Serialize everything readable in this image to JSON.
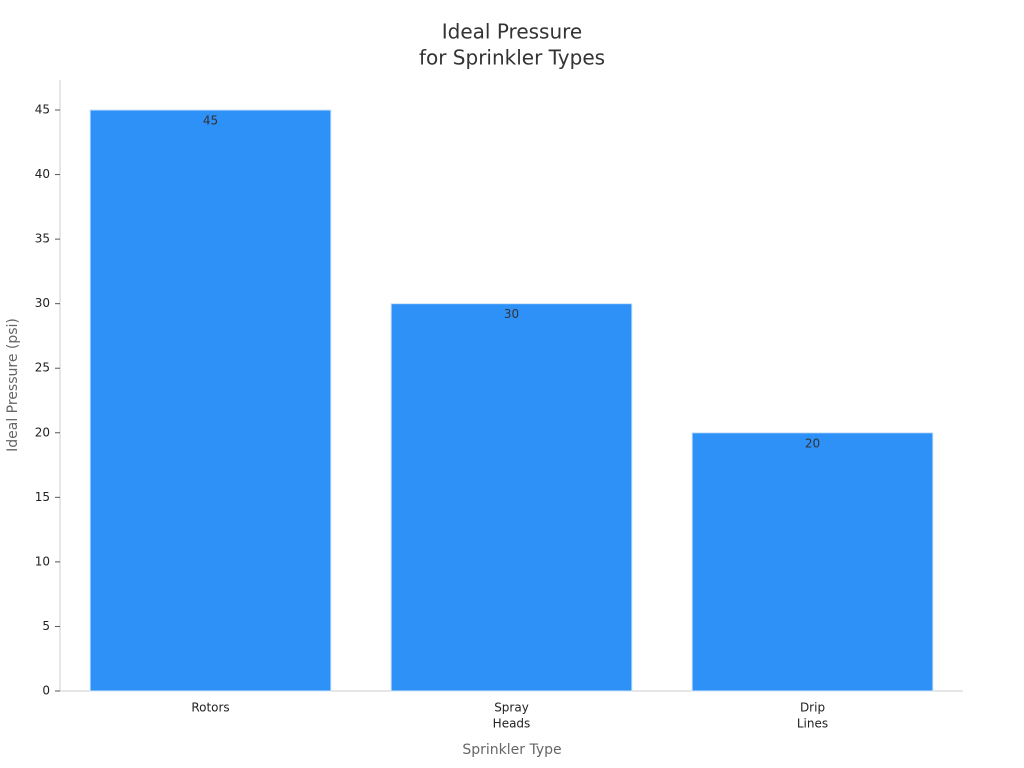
{
  "chart_data": {
    "type": "bar",
    "title": [
      "Ideal Pressure",
      "for Sprinkler Types"
    ],
    "x_label": "Sprinkler Type",
    "y_label": "Ideal Pressure (psi)",
    "categories": [
      [
        "Rotors"
      ],
      [
        "Spray",
        "Heads"
      ],
      [
        "Drip",
        "Lines"
      ]
    ],
    "values": [
      45,
      30,
      20
    ],
    "color": "#2e91f8",
    "ylim": [
      0,
      47.5
    ],
    "yticks": [
      0,
      5,
      10,
      15,
      20,
      25,
      30,
      35,
      40,
      45
    ],
    "grid": false
  }
}
